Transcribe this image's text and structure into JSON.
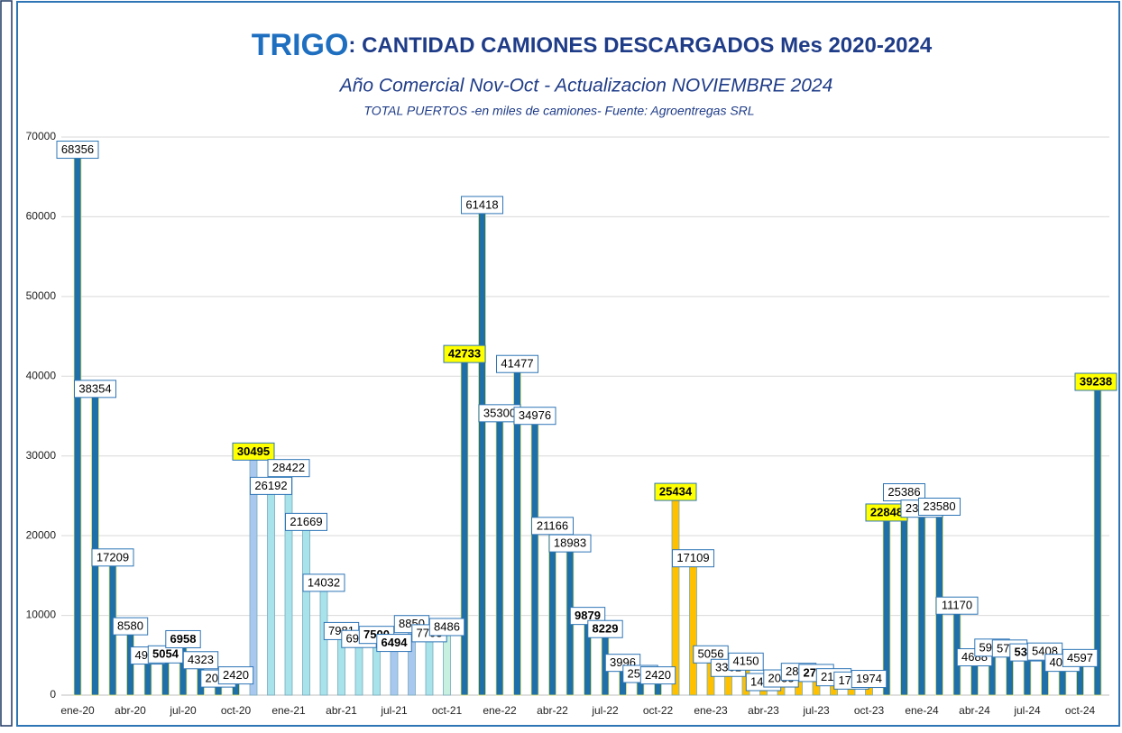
{
  "chart_data": {
    "type": "bar",
    "title_main": "TRIGO",
    "title_rest": ": CANTIDAD CAMIONES DESCARGADOS  Mes 2020-2024",
    "subtitle": "Año Comercial Nov-Oct - Actualizacion NOVIEMBRE  2024",
    "note": "TOTAL PUERTOS -en miles de camiones- Fuente: Agroentregas SRL",
    "categories": [
      "ene-20",
      null,
      null,
      "abr-20",
      null,
      null,
      "jul-20",
      null,
      null,
      "oct-20",
      null,
      null,
      "ene-21",
      null,
      null,
      "abr-21",
      null,
      null,
      "jul-21",
      null,
      null,
      "oct-21",
      null,
      null,
      "ene-22",
      null,
      null,
      "abr-22",
      null,
      null,
      "jul-22",
      null,
      null,
      "oct-22",
      null,
      null,
      "ene-23",
      null,
      null,
      "abr-23",
      null,
      null,
      "jul-23",
      null,
      null,
      "oct-23",
      null,
      null,
      "ene-24",
      null,
      null,
      "abr-24",
      null,
      null,
      "jul-24",
      null,
      null,
      "oct-24",
      null
    ],
    "values": [
      68356,
      38354,
      17209,
      8580,
      4914,
      5054,
      6958,
      4323,
      2024,
      2420,
      30495,
      26192,
      28422,
      21669,
      14032,
      7981,
      6987,
      7500,
      6494,
      8850,
      7703,
      8486,
      42733,
      61418,
      35300,
      41477,
      34976,
      21166,
      18983,
      9879,
      8229,
      3996,
      2599,
      2420,
      25434,
      17109,
      5056,
      3361,
      4150,
      1463,
      2033,
      2864,
      2723,
      2187,
      1772,
      1974,
      22848,
      25386,
      23330,
      23580,
      11170,
      4688,
      5900,
      5787,
      5304,
      5408,
      4000,
      4597,
      39238
    ],
    "colors": [
      "#1f6fa8",
      "#1f6fa8",
      "#1f6fa8",
      "#1f6fa8",
      "#1f6fa8",
      "#1f6fa8",
      "#1f6fa8",
      "#1f6fa8",
      "#1f6fa8",
      "#1f6fa8",
      "#a9c8f0",
      "#a8e2ea",
      "#a8e2ea",
      "#a8e2ea",
      "#a8e2ea",
      "#a8e2ea",
      "#a8e2ea",
      "#a8e2ea",
      "#a9c8f0",
      "#a9c8f0",
      "#a8e2ea",
      "#c8f0e0",
      "#1f6fa8",
      "#1f6fa8",
      "#1f6fa8",
      "#1f6fa8",
      "#1f6fa8",
      "#1f6fa8",
      "#1f6fa8",
      "#1f6fa8",
      "#1f6fa8",
      "#1f6fa8",
      "#1f6fa8",
      "#1f6fa8",
      "#ffc000",
      "#ffc000",
      "#ffc000",
      "#ffc000",
      "#ffc000",
      "#ffc000",
      "#ffc000",
      "#ffc000",
      "#ffc000",
      "#ffc000",
      "#ffc000",
      "#ffc000",
      "#1f6fa8",
      "#1f6fa8",
      "#1f6fa8",
      "#1f6fa8",
      "#1f6fa8",
      "#1f6fa8",
      "#1f6fa8",
      "#1f6fa8",
      "#1f6fa8",
      "#1f6fa8",
      "#1f6fa8",
      "#1f6fa8",
      "#1f6fa8"
    ],
    "highlighted": [
      10,
      22,
      34,
      46,
      58
    ],
    "bold": [
      5,
      6,
      17,
      18,
      29,
      30,
      42,
      54
    ],
    "ylim": [
      0,
      70000
    ],
    "yticks": [
      0,
      10000,
      20000,
      30000,
      40000,
      50000,
      60000,
      70000
    ],
    "grid": true
  }
}
